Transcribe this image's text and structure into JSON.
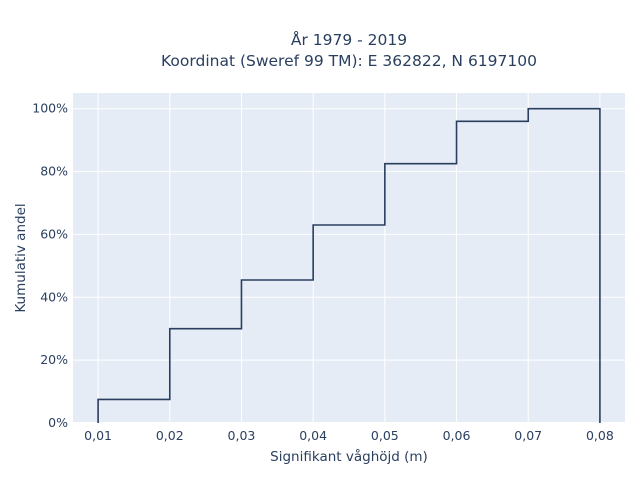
{
  "chart_data": {
    "type": "line",
    "line_shape": "step",
    "title": "År 1979 - 2019",
    "subtitle": "Koordinat (Sweref 99 TM): E 362822, N 6197100",
    "xlabel": "Signifikant våghöjd (m)",
    "ylabel": "Kumulativ andel",
    "x_tick_labels": [
      "0,01",
      "0,02",
      "0,03",
      "0,04",
      "0,05",
      "0,06",
      "0,07",
      "0,08"
    ],
    "y_tick_labels": [
      "0%",
      "20%",
      "40%",
      "60%",
      "80%",
      "100%"
    ],
    "xlim": [
      0.0065,
      0.0835
    ],
    "ylim": [
      0,
      1.05
    ],
    "x_ticks": [
      0.01,
      0.02,
      0.03,
      0.04,
      0.05,
      0.06,
      0.07,
      0.08
    ],
    "y_ticks": [
      0,
      0.2,
      0.4,
      0.6,
      0.8,
      1.0
    ],
    "series": [
      {
        "x": [
          0.01,
          0.02,
          0.03,
          0.04,
          0.05,
          0.06,
          0.07,
          0.08
        ],
        "y": [
          0.075,
          0.3,
          0.455,
          0.63,
          0.825,
          0.96,
          1.0,
          0.0
        ]
      }
    ],
    "grid": true,
    "colors": {
      "plot_background": "#e5ecf6",
      "grid": "#ffffff",
      "line": "#2a3f5f",
      "text": "#2a3f5f"
    }
  }
}
